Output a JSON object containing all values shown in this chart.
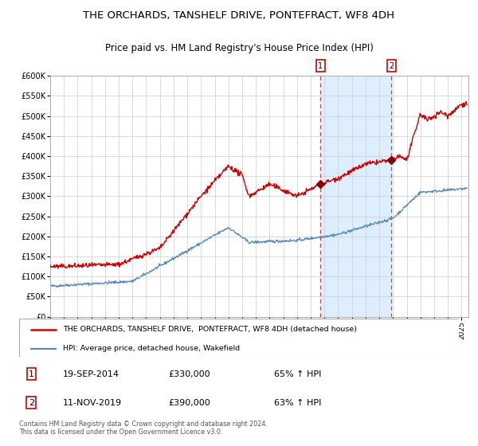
{
  "title1": "THE ORCHARDS, TANSHELF DRIVE, PONTEFRACT, WF8 4DH",
  "title2": "Price paid vs. HM Land Registry's House Price Index (HPI)",
  "ylim": [
    0,
    600000
  ],
  "yticks": [
    0,
    50000,
    100000,
    150000,
    200000,
    250000,
    300000,
    350000,
    400000,
    450000,
    500000,
    550000,
    600000
  ],
  "ytick_labels": [
    "£0",
    "£50K",
    "£100K",
    "£150K",
    "£200K",
    "£250K",
    "£300K",
    "£350K",
    "£400K",
    "£450K",
    "£500K",
    "£550K",
    "£600K"
  ],
  "background_color": "#ffffff",
  "plot_bg_color": "#ffffff",
  "grid_color": "#cccccc",
  "line1_color": "#cc0000",
  "line2_color": "#5588bb",
  "shade_color": "#ddeeff",
  "vline_color": "#cc4444",
  "point1_date": 2014.72,
  "point1_value": 330000,
  "point2_date": 2019.87,
  "point2_value": 390000,
  "legend_line1": "THE ORCHARDS, TANSHELF DRIVE,  PONTEFRACT, WF8 4DH (detached house)",
  "legend_line2": "HPI: Average price, detached house, Wakefield",
  "table_row1": [
    "1",
    "19-SEP-2014",
    "£330,000",
    "65% ↑ HPI"
  ],
  "table_row2": [
    "2",
    "11-NOV-2019",
    "£390,000",
    "63% ↑ HPI"
  ],
  "footnote": "Contains HM Land Registry data © Crown copyright and database right 2024.\nThis data is licensed under the Open Government Licence v3.0.",
  "xmin": 1995,
  "xmax": 2025.5
}
